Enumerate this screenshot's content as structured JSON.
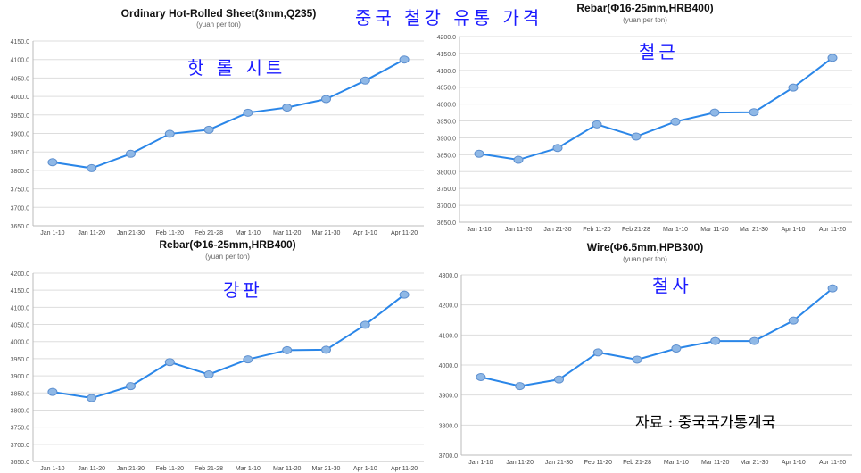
{
  "main_title": "중국 철강 유통 가격",
  "source": "자료 : 중국국가통계국",
  "colors": {
    "line": "#2a86e8",
    "marker": "#8fb8e6",
    "grid": "#dddddd",
    "overlay_text": "#1a1aff"
  },
  "chart_data": [
    {
      "type": "line",
      "title": "Ordinary Hot-Rolled Sheet(3mm,Q235)",
      "subtitle": "(yuan per ton)",
      "overlay_label": "핫 롤 시트",
      "categories": [
        "Jan 1-10",
        "Jan 11-20",
        "Jan 21-30",
        "Feb 11-20",
        "Feb 21-28",
        "Mar 1-10",
        "Mar 11-20",
        "Mar 21-30",
        "Apr 1-10",
        "Apr 11-20"
      ],
      "values": [
        3822,
        3806,
        3845,
        3899,
        3910,
        3956,
        3970,
        3993,
        4043,
        4100
      ],
      "ylim": [
        3650,
        4150
      ],
      "yticks": [
        "3650.0",
        "3700.0",
        "3750.0",
        "3800.0",
        "3850.0",
        "3900.0",
        "3950.0",
        "4000.0",
        "4050.0",
        "4100.0",
        "4150.0"
      ],
      "grid": true
    },
    {
      "type": "line",
      "title": "Rebar(Φ16-25mm,HRB400)",
      "subtitle": "(yuan per ton)",
      "overlay_label": "철근",
      "categories": [
        "Jan 1-10",
        "Jan 11-20",
        "Jan 21-30",
        "Feb 11-20",
        "Feb 21-28",
        "Mar 1-10",
        "Mar 11-20",
        "Mar 21-30",
        "Apr 1-10",
        "Apr 11-20"
      ],
      "values": [
        3853,
        3835,
        3870,
        3940,
        3904,
        3948,
        3975,
        3976,
        4049,
        4137
      ],
      "ylim": [
        3650,
        4200
      ],
      "yticks": [
        "3650.0",
        "3700.0",
        "3750.0",
        "3800.0",
        "3850.0",
        "3900.0",
        "3950.0",
        "4000.0",
        "4050.0",
        "4100.0",
        "4150.0",
        "4200.0"
      ],
      "grid": true
    },
    {
      "type": "line",
      "title": "Rebar(Φ16-25mm,HRB400)",
      "subtitle": "(yuan per ton)",
      "overlay_label": "강판",
      "categories": [
        "Jan 1-10",
        "Jan 11-20",
        "Jan 21-30",
        "Feb 11-20",
        "Feb 21-28",
        "Mar 1-10",
        "Mar 11-20",
        "Mar 21-30",
        "Apr 1-10",
        "Apr 11-20"
      ],
      "values": [
        3853,
        3835,
        3870,
        3940,
        3904,
        3948,
        3975,
        3976,
        4049,
        4137
      ],
      "ylim": [
        3650,
        4200
      ],
      "yticks": [
        "3650.0",
        "3700.0",
        "3750.0",
        "3800.0",
        "3850.0",
        "3900.0",
        "3950.0",
        "4000.0",
        "4050.0",
        "4100.0",
        "4150.0",
        "4200.0"
      ],
      "grid": true
    },
    {
      "type": "line",
      "title": "Wire(Φ6.5mm,HPB300)",
      "subtitle": "(yuan per ton)",
      "overlay_label": "철사",
      "categories": [
        "Jan 1-10",
        "Jan 11-20",
        "Jan 21-30",
        "Feb 11-20",
        "Feb 21-28",
        "Mar 1-10",
        "Mar 11-20",
        "Mar 21-30",
        "Apr 1-10",
        "Apr 11-20"
      ],
      "values": [
        3960,
        3930,
        3952,
        4042,
        4018,
        4055,
        4080,
        4080,
        4148,
        4255
      ],
      "ylim": [
        3700,
        4300
      ],
      "yticks": [
        "3700.0",
        "3800.0",
        "3900.0",
        "4000.0",
        "4100.0",
        "4200.0",
        "4300.0"
      ],
      "grid": true
    }
  ]
}
